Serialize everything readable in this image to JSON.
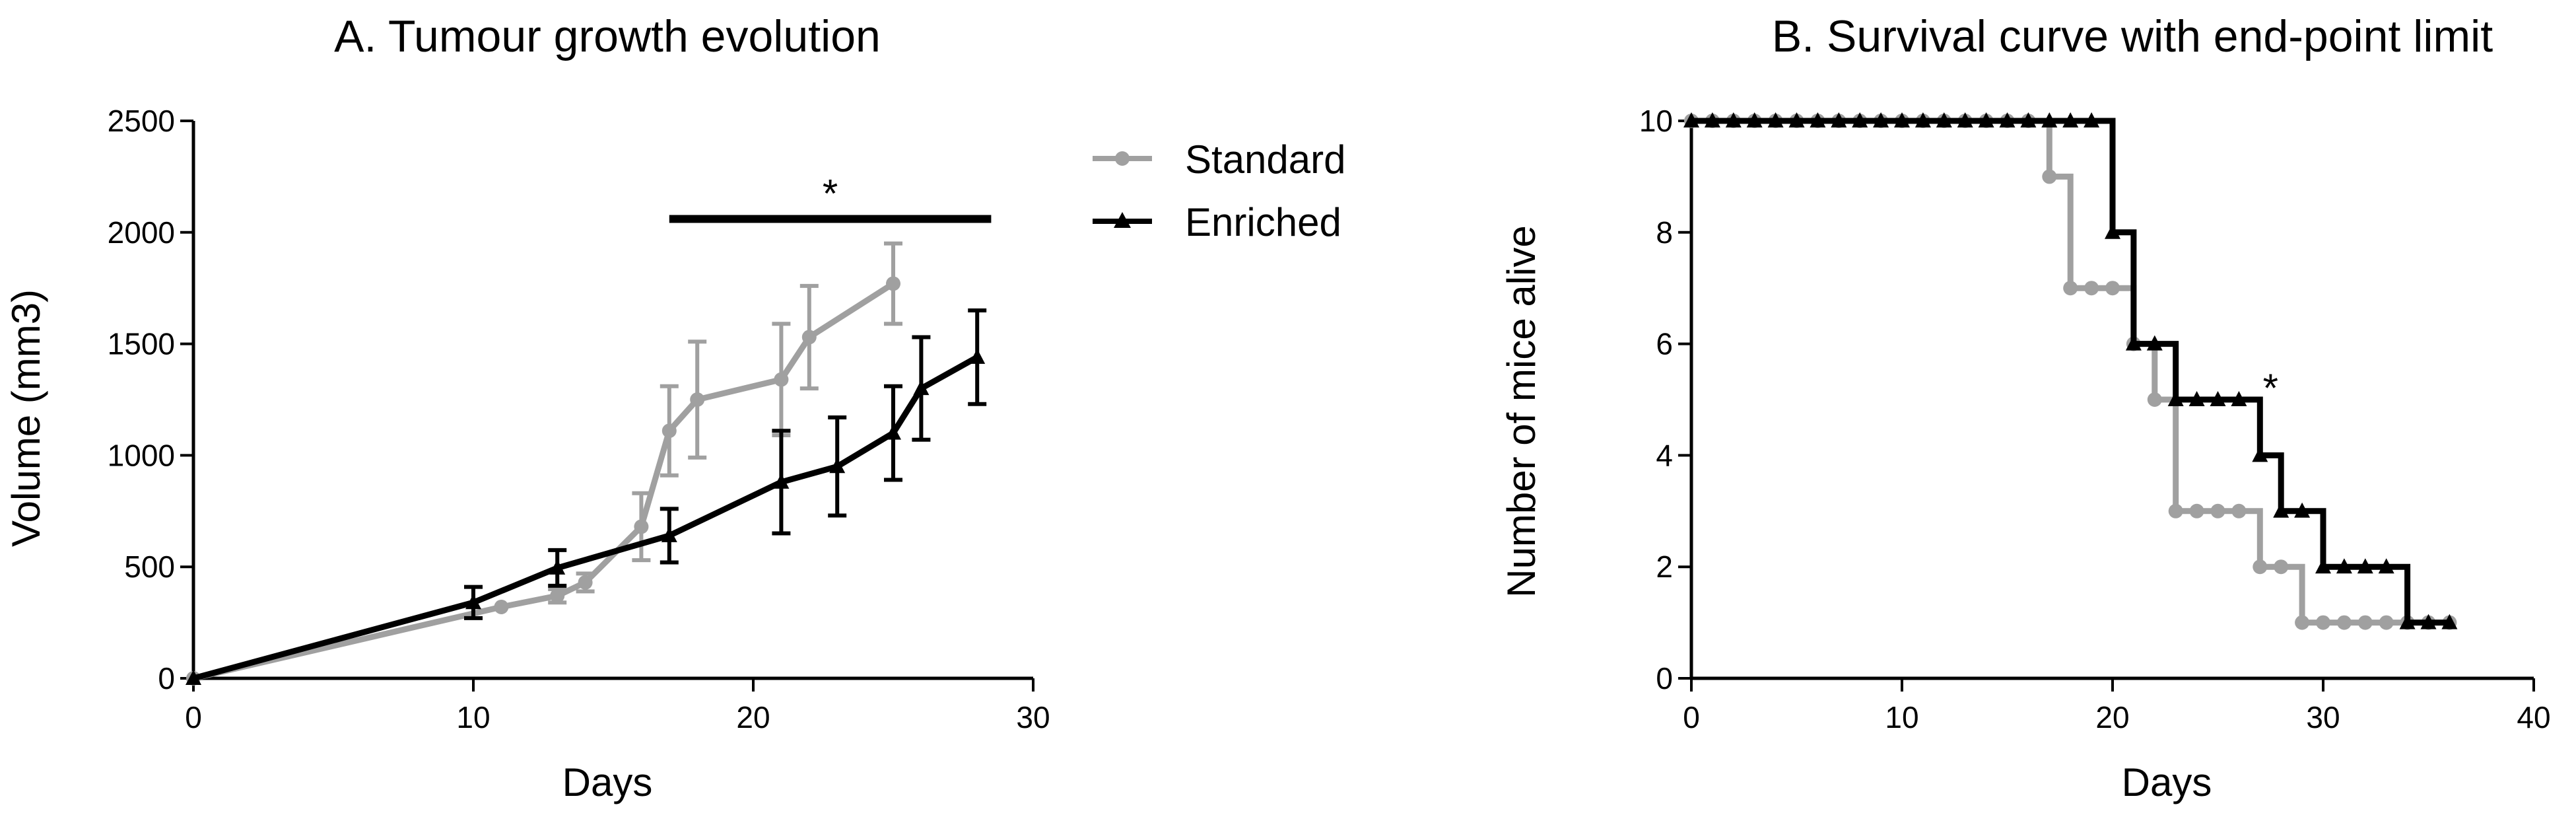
{
  "colors": {
    "standard": "#a0a0a0",
    "enriched": "#000000",
    "axis": "#000000"
  },
  "chart_data": [
    {
      "type": "line",
      "title": "A. Tumour growth evolution",
      "xlabel": "Days",
      "ylabel": "Volume (mm3)",
      "xlim": [
        0,
        30
      ],
      "ylim": [
        0,
        2500
      ],
      "xticks": [
        0,
        10,
        20,
        30
      ],
      "yticks": [
        0,
        500,
        1000,
        1500,
        2000,
        2500
      ],
      "grid": false,
      "legend": {
        "position": "top-right (outside)",
        "entries": [
          "Standard",
          "Enriched"
        ]
      },
      "series": [
        {
          "name": "Standard",
          "marker": "circle",
          "color": "#a0a0a0",
          "x": [
            0,
            11,
            13,
            14,
            16,
            17,
            18,
            21,
            22,
            25
          ],
          "y": [
            0,
            320,
            370,
            430,
            680,
            1110,
            1250,
            1340,
            1530,
            1770
          ],
          "err": [
            0,
            0,
            30,
            40,
            150,
            200,
            260,
            250,
            230,
            180
          ]
        },
        {
          "name": "Enriched",
          "marker": "triangle",
          "color": "#000000",
          "x": [
            0,
            10,
            13,
            17,
            21,
            23,
            25,
            26,
            28
          ],
          "y": [
            0,
            340,
            495,
            640,
            880,
            950,
            1100,
            1300,
            1440
          ],
          "err": [
            0,
            70,
            80,
            120,
            230,
            220,
            210,
            230,
            210
          ]
        }
      ],
      "annotations": [
        {
          "type": "significance-bar",
          "text": "*",
          "x_range": [
            17,
            28.5
          ],
          "y": 2060
        }
      ]
    },
    {
      "type": "line",
      "step": true,
      "title": "B. Survival curve with end-point limit",
      "xlabel": "Days",
      "ylabel": "Number of mice alive",
      "xlim": [
        0,
        40
      ],
      "ylim": [
        0,
        10
      ],
      "xticks": [
        0,
        10,
        20,
        30,
        40
      ],
      "yticks": [
        0,
        2,
        4,
        6,
        8,
        10
      ],
      "grid": false,
      "series": [
        {
          "name": "Standard",
          "marker": "circle",
          "color": "#a0a0a0",
          "x": [
            0,
            1,
            2,
            3,
            4,
            5,
            6,
            7,
            8,
            9,
            10,
            11,
            12,
            13,
            14,
            15,
            16,
            17,
            18,
            19,
            20,
            21,
            22,
            23,
            24,
            25,
            26,
            27,
            28,
            29,
            30,
            31,
            32,
            33,
            34,
            35,
            36
          ],
          "y": [
            10,
            10,
            10,
            10,
            10,
            10,
            10,
            10,
            10,
            10,
            10,
            10,
            10,
            10,
            10,
            10,
            10,
            9,
            7,
            7,
            7,
            6,
            5,
            3,
            3,
            3,
            3,
            2,
            2,
            1,
            1,
            1,
            1,
            1,
            1,
            1,
            1
          ]
        },
        {
          "name": "Enriched",
          "marker": "triangle",
          "color": "#000000",
          "x": [
            0,
            1,
            2,
            3,
            4,
            5,
            6,
            7,
            8,
            9,
            10,
            11,
            12,
            13,
            14,
            15,
            16,
            17,
            18,
            19,
            20,
            21,
            22,
            23,
            24,
            25,
            26,
            27,
            28,
            29,
            30,
            31,
            32,
            33,
            34,
            35,
            36
          ],
          "y": [
            10,
            10,
            10,
            10,
            10,
            10,
            10,
            10,
            10,
            10,
            10,
            10,
            10,
            10,
            10,
            10,
            10,
            10,
            10,
            10,
            8,
            6,
            6,
            5,
            5,
            5,
            5,
            4,
            3,
            3,
            2,
            2,
            2,
            2,
            1,
            1,
            1
          ]
        }
      ],
      "annotations": [
        {
          "type": "significance",
          "text": "*",
          "x": 27.5,
          "y": 5.2
        }
      ]
    }
  ]
}
